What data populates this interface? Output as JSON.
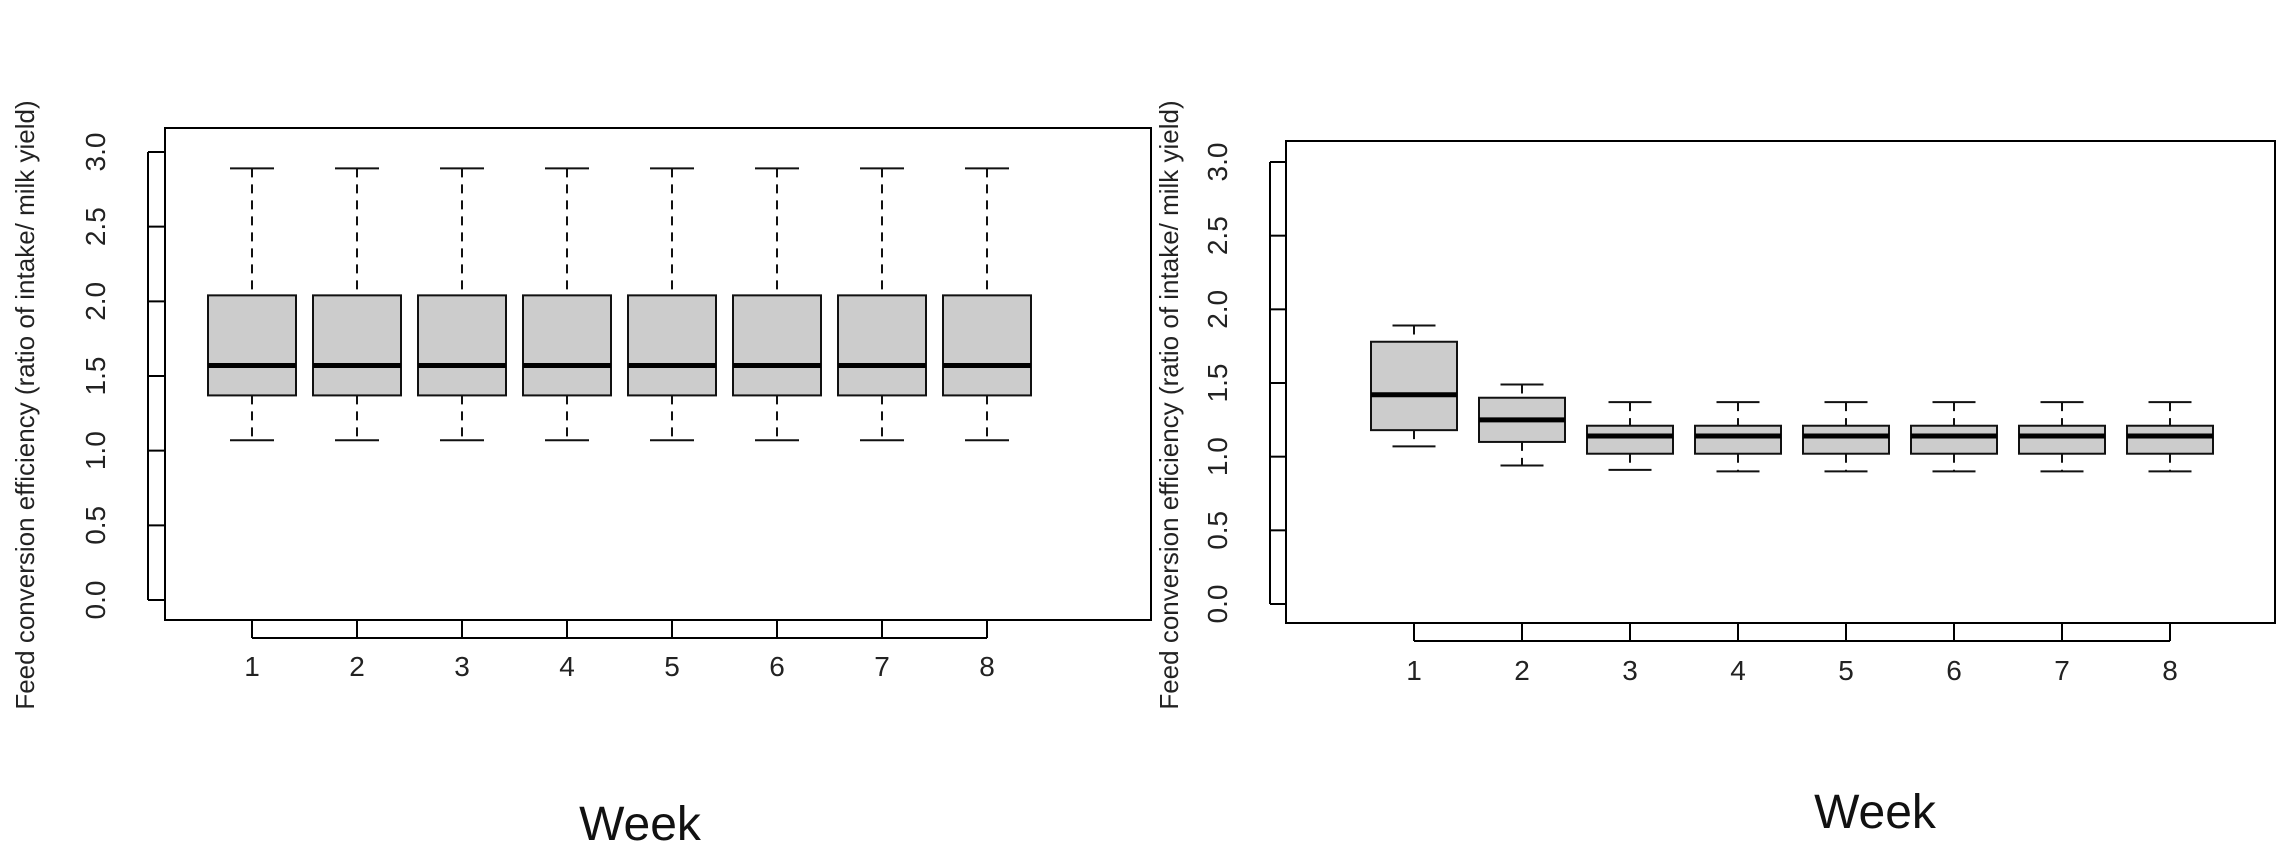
{
  "chart_data": [
    {
      "type": "boxplot",
      "ylabel": "Feed conversion efficiency (ratio of intake/ milk yield)",
      "xlabel": "Week",
      "ylim": [
        0.0,
        3.0
      ],
      "yticks": [
        "0.0",
        "0.5",
        "1.0",
        "1.5",
        "2.0",
        "2.5",
        "3.0"
      ],
      "categories": [
        "1",
        "2",
        "3",
        "4",
        "5",
        "6",
        "7",
        "8"
      ],
      "boxes": [
        {
          "min": 1.07,
          "q1": 1.37,
          "median": 1.57,
          "q3": 2.04,
          "max": 2.89
        },
        {
          "min": 1.07,
          "q1": 1.37,
          "median": 1.57,
          "q3": 2.04,
          "max": 2.89
        },
        {
          "min": 1.07,
          "q1": 1.37,
          "median": 1.57,
          "q3": 2.04,
          "max": 2.89
        },
        {
          "min": 1.07,
          "q1": 1.37,
          "median": 1.57,
          "q3": 2.04,
          "max": 2.89
        },
        {
          "min": 1.07,
          "q1": 1.37,
          "median": 1.57,
          "q3": 2.04,
          "max": 2.89
        },
        {
          "min": 1.07,
          "q1": 1.37,
          "median": 1.57,
          "q3": 2.04,
          "max": 2.89
        },
        {
          "min": 1.07,
          "q1": 1.37,
          "median": 1.57,
          "q3": 2.04,
          "max": 2.89
        },
        {
          "min": 1.07,
          "q1": 1.37,
          "median": 1.57,
          "q3": 2.04,
          "max": 2.89
        }
      ]
    },
    {
      "type": "boxplot",
      "ylabel": "Feed conversion efficiency (ratio of intake/ milk yield)",
      "xlabel": "Week",
      "ylim": [
        0.0,
        3.0
      ],
      "yticks": [
        "0.0",
        "0.5",
        "1.0",
        "1.5",
        "2.0",
        "2.5",
        "3.0"
      ],
      "categories": [
        "1",
        "2",
        "3",
        "4",
        "5",
        "6",
        "7",
        "8"
      ],
      "boxes": [
        {
          "min": 1.07,
          "q1": 1.18,
          "median": 1.42,
          "q3": 1.78,
          "max": 1.89
        },
        {
          "min": 0.94,
          "q1": 1.1,
          "median": 1.25,
          "q3": 1.4,
          "max": 1.49
        },
        {
          "min": 0.91,
          "q1": 1.02,
          "median": 1.14,
          "q3": 1.21,
          "max": 1.37
        },
        {
          "min": 0.9,
          "q1": 1.02,
          "median": 1.14,
          "q3": 1.21,
          "max": 1.37
        },
        {
          "min": 0.9,
          "q1": 1.02,
          "median": 1.14,
          "q3": 1.21,
          "max": 1.37
        },
        {
          "min": 0.9,
          "q1": 1.02,
          "median": 1.14,
          "q3": 1.21,
          "max": 1.37
        },
        {
          "min": 0.9,
          "q1": 1.02,
          "median": 1.14,
          "q3": 1.21,
          "max": 1.37
        },
        {
          "min": 0.9,
          "q1": 1.02,
          "median": 1.14,
          "q3": 1.21,
          "max": 1.37
        }
      ]
    }
  ]
}
